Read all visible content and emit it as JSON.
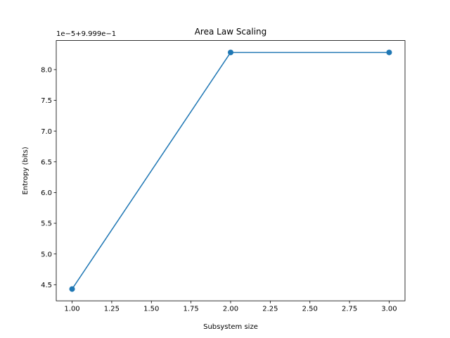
{
  "chart_data": {
    "type": "line",
    "title": "Area Law Scaling",
    "xlabel": "Subsystem size",
    "ylabel": "Entropy (bits)",
    "y_offset_text": "1e−5+9.999e−1",
    "y_offset_note": "y tick values are shown as (value − 0.9999) × 1e5",
    "x": [
      1,
      2,
      3
    ],
    "series": [
      {
        "values": [
          4.43,
          8.28,
          8.28
        ],
        "color": "#1f77b4",
        "marker": "circle"
      }
    ],
    "xlim": [
      0.9,
      3.1
    ],
    "ylim": [
      4.238,
      8.473
    ],
    "xticks": [
      1.0,
      1.25,
      1.5,
      1.75,
      2.0,
      2.25,
      2.5,
      2.75,
      3.0
    ],
    "xtick_labels": [
      "1.00",
      "1.25",
      "1.50",
      "1.75",
      "2.00",
      "2.25",
      "2.50",
      "2.75",
      "3.00"
    ],
    "yticks": [
      4.5,
      5.0,
      5.5,
      6.0,
      6.5,
      7.0,
      7.5,
      8.0
    ],
    "ytick_labels": [
      "4.5",
      "5.0",
      "5.5",
      "6.0",
      "6.5",
      "7.0",
      "7.5",
      "8.0"
    ],
    "grid": false,
    "legend": "none"
  }
}
